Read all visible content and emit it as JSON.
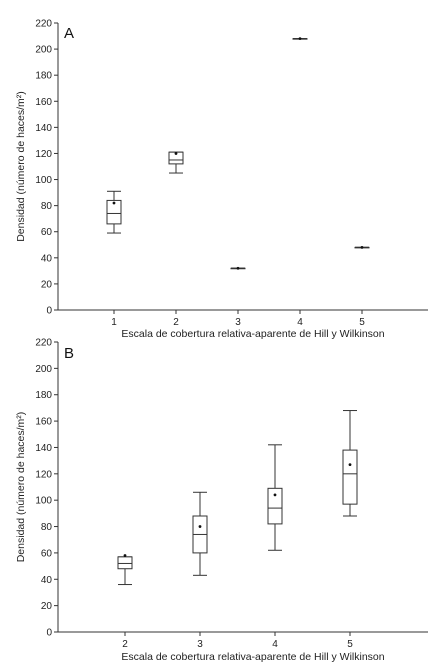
{
  "chart_data": [
    {
      "type": "box",
      "panel_label": "A",
      "xlabel": "Escala de cobertura relativa-aparente de Hill y Wilkinson",
      "ylabel": "Densidad (número de haces/m²)",
      "ylim": [
        0,
        220
      ],
      "yticks": [
        0,
        20,
        40,
        60,
        80,
        100,
        120,
        140,
        160,
        180,
        200,
        220
      ],
      "categories": [
        "1",
        "2",
        "3",
        "4",
        "5"
      ],
      "boxes": [
        {
          "category": "1",
          "min": 59,
          "q1": 66,
          "median": 74,
          "q3": 84,
          "max": 91,
          "mean": 82
        },
        {
          "category": "2",
          "min": 105,
          "q1": 112,
          "median": 115,
          "q3": 121,
          "max": 121,
          "mean": 120
        },
        {
          "category": "3",
          "min": 32,
          "q1": 32,
          "median": 32,
          "q3": 32,
          "max": 32,
          "mean": 32
        },
        {
          "category": "4",
          "min": 208,
          "q1": 208,
          "median": 208,
          "q3": 208,
          "max": 208,
          "mean": 208
        },
        {
          "category": "5",
          "min": 48,
          "q1": 48,
          "median": 48,
          "q3": 48,
          "max": 48,
          "mean": 48
        }
      ],
      "grid": false,
      "legend": "none"
    },
    {
      "type": "box",
      "panel_label": "B",
      "xlabel": "Escala de cobertura relativa-aparente de Hill y Wilkinson",
      "ylabel": "Densidad (número de haces/m²)",
      "ylim": [
        0,
        220
      ],
      "yticks": [
        0,
        20,
        40,
        60,
        80,
        100,
        120,
        140,
        160,
        180,
        200,
        220
      ],
      "categories": [
        "2",
        "3",
        "4",
        "5"
      ],
      "boxes": [
        {
          "category": "2",
          "min": 36,
          "q1": 48,
          "median": 52,
          "q3": 57,
          "max": 57,
          "mean": 58
        },
        {
          "category": "3",
          "min": 43,
          "q1": 60,
          "median": 74,
          "q3": 88,
          "max": 106,
          "mean": 80
        },
        {
          "category": "4",
          "min": 62,
          "q1": 82,
          "median": 94,
          "q3": 109,
          "max": 142,
          "mean": 104
        },
        {
          "category": "5",
          "min": 88,
          "q1": 97,
          "median": 120,
          "q3": 138,
          "max": 168,
          "mean": 127
        }
      ],
      "grid": false,
      "legend": "none"
    }
  ]
}
